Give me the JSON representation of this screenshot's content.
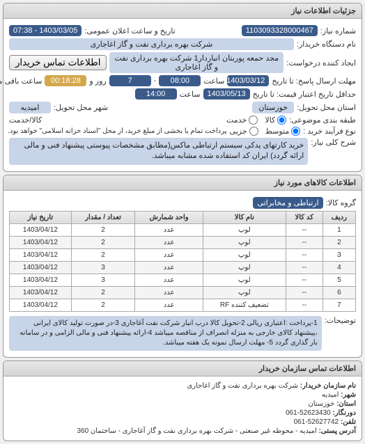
{
  "main_header": "جزئیات اطلاعات نیاز",
  "info": {
    "req_no_label": "شماره نیاز:",
    "req_no": "1103093328000467",
    "pub_date_label": "تاریخ و ساعت اعلان عمومی:",
    "pub_date": "1403/03/05 - 07:38",
    "buyer_org_label": "نام دستگاه خریدار:",
    "buyer_org": "شرکت بهره برداری نفت و گاز اغاجاری",
    "requester_label": "ایجاد کننده درخواست:",
    "requester": "مجد حمعه پوربتان انباردار1 شرکت بهره برداری نفت و گاز اغاجاری",
    "contact_btn": "اطلاعات تماس خریدار",
    "resp_deadline_label": "مهلت ارسال پاسخ: تا تاریخ",
    "resp_date": "1403/03/12",
    "time_label": "ساعت",
    "resp_time": "08:00",
    "dash": "-",
    "days_remain": "7",
    "days_remain_label": "روز و",
    "time_remain": "00:18:28",
    "time_remain_label": "ساعت باقی مانده",
    "price_deadline_label": "حداقل تاریخ اعتبار قیمت: تا تاریخ",
    "price_date": "1403/05/13",
    "price_time": "14:00",
    "delivery_prov_label": "استان محل تحویل:",
    "delivery_prov": "خوزستان",
    "delivery_city_label": "شهر محل تحویل:",
    "delivery_city": "امیدیه",
    "budget_label": "طبقه بندی موضوعی:",
    "cash_credit_label": "کالا/خدمت",
    "radio_goods": "کالا",
    "radio_service": "خدمت",
    "contract_label": "نوع فرآیند خرید :",
    "radio_small": "جزیی",
    "radio_medium": "متوسط",
    "payment_note": "پرداخت تمام یا بخشی از مبلغ خرید، از محل \"اسناد خزانه اسلامی\" خواهد بود.",
    "desc_label": "شرح کلی نیاز:",
    "desc": "خرید کارتهای یدکی سیستم ارتباطی ماکس(مطابق مشخصات پیوستی پیشنهاد فنی و مالی ارائه گردد) ایران کد استفاده شده مشابه میباشد."
  },
  "goods": {
    "header": "اطلاعات کالاهای مورد نیاز",
    "group_label": "گروه کالا:",
    "group_value": "ارتباطی و مخابراتی",
    "columns": [
      "ردیف",
      "کد کالا",
      "نام کالا",
      "واحد شمارش",
      "تعداد / مقدار",
      "تاریخ نیاز"
    ],
    "rows": [
      [
        "1",
        "--",
        "لوپ",
        "عدد",
        "2",
        "1403/04/12"
      ],
      [
        "2",
        "--",
        "لوپ",
        "عدد",
        "2",
        "1403/04/12"
      ],
      [
        "3",
        "--",
        "لوپ",
        "عدد",
        "2",
        "1403/04/12"
      ],
      [
        "4",
        "--",
        "لوپ",
        "عدد",
        "3",
        "1403/04/12"
      ],
      [
        "5",
        "--",
        "لوپ",
        "عدد",
        "3",
        "1403/04/12"
      ],
      [
        "6",
        "--",
        "لوپ",
        "عدد",
        "2",
        "1403/04/12"
      ],
      [
        "7",
        "--",
        "تضعیف کننده RF",
        "عدد",
        "2",
        "1403/04/12"
      ]
    ],
    "notes_label": "توضیحات:",
    "notes": "1-پرداخت :اعتباری ریالی 2-تحویل کالا درب انبار شرکت نفت آغاجاری 3-در صورت تولید کالای ایرانی ،پیشنهاد کالای خارجی به منزله انصراف از مناقصه میباشد 4-ارائه پیشنهاد فنی و مالی الزامی و در سامانه بار گذاری گردد 5- مهلت ارسال نمونه یک هفته میباشد."
  },
  "contact": {
    "header": "اطلاعات تماس سازمان خریدار",
    "org_label": "نام سازمان خریدار:",
    "org": "شرکت بهره برداری نفت و گاز اغاجاری",
    "city_label": "شهر:",
    "city": "امیدیه",
    "prov_label": "استان:",
    "prov": "خوزستان",
    "fax_label": "دورنگار:",
    "fax": "52623430-061",
    "phone_label": "تلفن:",
    "phone": "52627742-061",
    "addr_label": "آدرس پستی:",
    "addr": "امیدیه - محوطه غیر صنعتی - شرکت بهره برداری نفت و گاز آغاجاری - ساختمان 360"
  }
}
